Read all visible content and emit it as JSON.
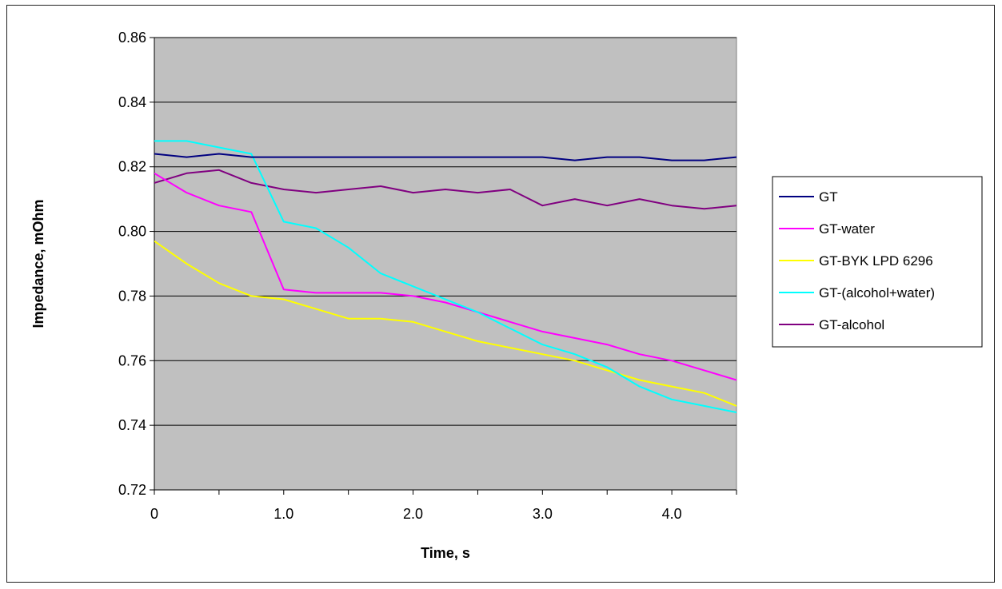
{
  "chart_data": {
    "type": "line",
    "xlabel": "Time, s",
    "ylabel": "Impedance, mOhm",
    "xlim": [
      0,
      4.5
    ],
    "ylim": [
      0.72,
      0.86
    ],
    "x_ticks": [
      0,
      1.0,
      2.0,
      3.0,
      4.0
    ],
    "x_tick_labels": [
      "0",
      "1.0",
      "2.0",
      "3.0",
      "4.0"
    ],
    "y_ticks": [
      0.72,
      0.74,
      0.76,
      0.78,
      0.8,
      0.82,
      0.84,
      0.86
    ],
    "y_tick_labels": [
      "0.72",
      "0.74",
      "0.76",
      "0.78",
      "0.80",
      "0.82",
      "0.84",
      "0.86"
    ],
    "grid": "horizontal",
    "legend_position": "right",
    "plot_background": "#c0c0c0",
    "series": [
      {
        "name": "GT",
        "color": "#000080",
        "x": [
          0,
          0.25,
          0.5,
          0.75,
          1.0,
          1.25,
          1.5,
          1.75,
          2.0,
          2.25,
          2.5,
          2.75,
          3.0,
          3.25,
          3.5,
          3.75,
          4.0,
          4.25,
          4.5
        ],
        "values": [
          0.824,
          0.823,
          0.824,
          0.823,
          0.823,
          0.823,
          0.823,
          0.823,
          0.823,
          0.823,
          0.823,
          0.823,
          0.823,
          0.822,
          0.823,
          0.823,
          0.822,
          0.822,
          0.823
        ]
      },
      {
        "name": "GT-water",
        "color": "#ff00ff",
        "x": [
          0,
          0.25,
          0.5,
          0.75,
          1.0,
          1.25,
          1.5,
          1.75,
          2.0,
          2.25,
          2.5,
          2.75,
          3.0,
          3.25,
          3.5,
          3.75,
          4.0,
          4.25,
          4.5
        ],
        "values": [
          0.818,
          0.812,
          0.808,
          0.806,
          0.782,
          0.781,
          0.781,
          0.781,
          0.78,
          0.778,
          0.775,
          0.772,
          0.769,
          0.767,
          0.765,
          0.762,
          0.76,
          0.757,
          0.754
        ]
      },
      {
        "name": "GT-BYK LPD 6296",
        "color": "#ffff00",
        "x": [
          0,
          0.25,
          0.5,
          0.75,
          1.0,
          1.25,
          1.5,
          1.75,
          2.0,
          2.25,
          2.5,
          2.75,
          3.0,
          3.25,
          3.5,
          3.75,
          4.0,
          4.25,
          4.5
        ],
        "values": [
          0.797,
          0.79,
          0.784,
          0.78,
          0.779,
          0.776,
          0.773,
          0.773,
          0.772,
          0.769,
          0.766,
          0.764,
          0.762,
          0.76,
          0.757,
          0.754,
          0.752,
          0.75,
          0.746
        ]
      },
      {
        "name": "GT-(alcohol+water)",
        "color": "#00ffff",
        "x": [
          0,
          0.25,
          0.5,
          0.75,
          1.0,
          1.25,
          1.5,
          1.75,
          2.0,
          2.25,
          2.5,
          2.75,
          3.0,
          3.25,
          3.5,
          3.75,
          4.0,
          4.25,
          4.5
        ],
        "values": [
          0.828,
          0.828,
          0.826,
          0.824,
          0.803,
          0.801,
          0.795,
          0.787,
          0.783,
          0.779,
          0.775,
          0.77,
          0.765,
          0.762,
          0.758,
          0.752,
          0.748,
          0.746,
          0.744
        ]
      },
      {
        "name": "GT-alcohol",
        "color": "#800080",
        "x": [
          0,
          0.25,
          0.5,
          0.75,
          1.0,
          1.25,
          1.5,
          1.75,
          2.0,
          2.25,
          2.5,
          2.75,
          3.0,
          3.25,
          3.5,
          3.75,
          4.0,
          4.25,
          4.5
        ],
        "values": [
          0.815,
          0.818,
          0.819,
          0.815,
          0.813,
          0.812,
          0.813,
          0.814,
          0.812,
          0.813,
          0.812,
          0.813,
          0.808,
          0.81,
          0.808,
          0.81,
          0.808,
          0.807,
          0.808
        ]
      }
    ]
  }
}
